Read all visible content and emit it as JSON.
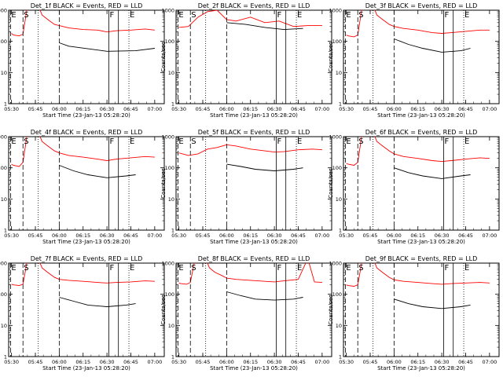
{
  "figure": {
    "x_tick_labels": [
      "05:30",
      "05:45",
      "06:00",
      "06:15",
      "06:30",
      "06:45",
      "07:00"
    ],
    "y_tick_labels": [
      "1",
      "10",
      "100",
      "1000"
    ],
    "x_label": "Start Time (23-Jan-13 05:28:20)",
    "y_label": "Counts/sec",
    "markers": [
      "E",
      "S",
      "F",
      "E"
    ],
    "colors": {
      "events": "#000000",
      "lld": "#ff0000"
    }
  },
  "chart_data": [
    {
      "type": "line",
      "title": "Det_1f BLACK = Events, RED = LLD",
      "xlabel": "Start Time (23-Jan-13 05:28:20)",
      "ylabel": "Counts/sec",
      "x_range": [
        "05:28:20",
        "07:06"
      ],
      "ylim": [
        1,
        1000
      ],
      "yscale": "log",
      "series": [
        {
          "name": "Events",
          "color": "black",
          "t": [
            6.0,
            6.1,
            6.5,
            6.8,
            7.0
          ],
          "y": [
            90,
            70,
            48,
            50,
            60
          ]
        },
        {
          "name": "LLD",
          "color": "red",
          "t": [
            5.5,
            5.52,
            5.58,
            5.62,
            5.66,
            5.72,
            5.78,
            5.82,
            5.88,
            5.95,
            6.0,
            6.1,
            6.25,
            6.4,
            6.5,
            6.6,
            6.75,
            6.9,
            7.0
          ],
          "y": [
            180,
            160,
            150,
            170,
            1000,
            1200,
            1400,
            700,
            500,
            350,
            320,
            270,
            240,
            230,
            200,
            220,
            230,
            250,
            230
          ]
        }
      ],
      "markers": [
        {
          "label": "E",
          "t": 5.49,
          "style": "dashed"
        },
        {
          "label": "S",
          "t": 5.62,
          "style": "dashed"
        },
        {
          "label": "",
          "t": 5.78,
          "style": "dotted"
        },
        {
          "label": "",
          "t": 6.0,
          "style": "dashed"
        },
        {
          "label": "F",
          "t": 6.52,
          "style": "solid"
        },
        {
          "label": "",
          "t": 6.62,
          "style": "solid"
        },
        {
          "label": "E",
          "t": 6.73,
          "style": "dotted"
        }
      ]
    },
    {
      "type": "line",
      "title": "Det_2f BLACK = Events, RED = LLD",
      "xlabel": "Start Time (23-Jan-13 05:28:20)",
      "ylabel": "Counts/sec",
      "x_range": [
        "05:28:20",
        "07:06"
      ],
      "ylim": [
        1,
        1000
      ],
      "yscale": "log",
      "series": [
        {
          "name": "Events",
          "color": "black",
          "t": [
            6.0,
            6.2,
            6.4,
            6.6,
            6.8
          ],
          "y": [
            400,
            350,
            280,
            240,
            260
          ]
        },
        {
          "name": "LLD",
          "color": "red",
          "t": [
            5.5,
            5.6,
            5.7,
            5.8,
            5.9,
            6.0,
            6.1,
            6.25,
            6.4,
            6.55,
            6.7,
            6.85,
            7.0
          ],
          "y": [
            280,
            300,
            600,
            900,
            1000,
            500,
            450,
            600,
            400,
            450,
            300,
            320,
            320
          ]
        }
      ],
      "markers": [
        {
          "label": "E",
          "t": 5.49,
          "style": "dashed"
        },
        {
          "label": "S",
          "t": 5.62,
          "style": "dashed"
        },
        {
          "label": "",
          "t": 5.78,
          "style": "dotted"
        },
        {
          "label": "",
          "t": 6.0,
          "style": "dashed"
        },
        {
          "label": "F",
          "t": 6.52,
          "style": "solid"
        },
        {
          "label": "",
          "t": 6.62,
          "style": "solid"
        },
        {
          "label": "E",
          "t": 6.73,
          "style": "dotted"
        }
      ]
    },
    {
      "type": "line",
      "title": "Det_3f BLACK = Events, RED = LLD",
      "xlabel": "Start Time (23-Jan-13 05:28:20)",
      "ylabel": "Counts/sec",
      "x_range": [
        "05:28:20",
        "07:06"
      ],
      "ylim": [
        1,
        1000
      ],
      "yscale": "log",
      "series": [
        {
          "name": "Events",
          "color": "black",
          "t": [
            6.0,
            6.15,
            6.3,
            6.5,
            6.7,
            6.8
          ],
          "y": [
            120,
            80,
            60,
            45,
            50,
            60
          ]
        },
        {
          "name": "LLD",
          "color": "red",
          "t": [
            5.5,
            5.52,
            5.58,
            5.62,
            5.66,
            5.72,
            5.78,
            5.82,
            5.88,
            5.95,
            6.0,
            6.1,
            6.25,
            6.4,
            6.5,
            6.6,
            6.75,
            6.9,
            7.0
          ],
          "y": [
            160,
            150,
            140,
            160,
            1000,
            1200,
            1400,
            700,
            500,
            350,
            300,
            260,
            230,
            190,
            180,
            190,
            210,
            230,
            230
          ]
        }
      ],
      "markers": [
        {
          "label": "E",
          "t": 5.49,
          "style": "dashed"
        },
        {
          "label": "S",
          "t": 5.62,
          "style": "dashed"
        },
        {
          "label": "",
          "t": 5.78,
          "style": "dotted"
        },
        {
          "label": "",
          "t": 6.0,
          "style": "dashed"
        },
        {
          "label": "F",
          "t": 6.52,
          "style": "solid"
        },
        {
          "label": "",
          "t": 6.62,
          "style": "solid"
        },
        {
          "label": "E",
          "t": 6.73,
          "style": "dotted"
        }
      ]
    },
    {
      "type": "line",
      "title": "Det_4f BLACK = Events, RED = LLD",
      "xlabel": "Start Time (23-Jan-13 05:28:20)",
      "ylabel": "Counts/sec",
      "x_range": [
        "05:28:20",
        "07:06"
      ],
      "ylim": [
        1,
        1000
      ],
      "yscale": "log",
      "series": [
        {
          "name": "Events",
          "color": "black",
          "t": [
            6.0,
            6.15,
            6.3,
            6.5,
            6.7,
            6.8
          ],
          "y": [
            120,
            80,
            60,
            48,
            55,
            60
          ]
        },
        {
          "name": "LLD",
          "color": "red",
          "t": [
            5.5,
            5.52,
            5.58,
            5.62,
            5.66,
            5.72,
            5.78,
            5.82,
            5.88,
            5.95,
            6.0,
            6.1,
            6.25,
            6.4,
            6.5,
            6.6,
            6.75,
            6.9,
            7.0
          ],
          "y": [
            130,
            120,
            110,
            150,
            1000,
            1200,
            1400,
            700,
            500,
            350,
            300,
            250,
            220,
            190,
            170,
            190,
            210,
            230,
            220
          ]
        }
      ],
      "markers": [
        {
          "label": "E",
          "t": 5.49,
          "style": "dashed"
        },
        {
          "label": "S",
          "t": 5.62,
          "style": "dashed"
        },
        {
          "label": "",
          "t": 5.78,
          "style": "dotted"
        },
        {
          "label": "",
          "t": 6.0,
          "style": "dashed"
        },
        {
          "label": "F",
          "t": 6.52,
          "style": "solid"
        },
        {
          "label": "",
          "t": 6.62,
          "style": "solid"
        },
        {
          "label": "E",
          "t": 6.73,
          "style": "dotted"
        }
      ]
    },
    {
      "type": "line",
      "title": "Det_5f BLACK = Events, RED = LLD",
      "xlabel": "Start Time (23-Jan-13 05:28:20)",
      "ylabel": "Counts/sec",
      "x_range": [
        "05:28:20",
        "07:06"
      ],
      "ylim": [
        1,
        1000
      ],
      "yscale": "log",
      "series": [
        {
          "name": "Events",
          "color": "black",
          "t": [
            6.0,
            6.15,
            6.3,
            6.5,
            6.7,
            6.8
          ],
          "y": [
            130,
            110,
            90,
            80,
            90,
            100
          ]
        },
        {
          "name": "LLD",
          "color": "red",
          "t": [
            5.5,
            5.6,
            5.7,
            5.8,
            5.9,
            6.0,
            6.1,
            6.25,
            6.4,
            6.5,
            6.6,
            6.75,
            6.9,
            7.0
          ],
          "y": [
            300,
            250,
            280,
            400,
            450,
            550,
            500,
            400,
            350,
            320,
            330,
            380,
            400,
            380
          ]
        }
      ],
      "markers": [
        {
          "label": "E",
          "t": 5.49,
          "style": "dashed"
        },
        {
          "label": "S",
          "t": 5.62,
          "style": "dashed"
        },
        {
          "label": "",
          "t": 5.78,
          "style": "dotted"
        },
        {
          "label": "",
          "t": 6.0,
          "style": "dashed"
        },
        {
          "label": "F",
          "t": 6.52,
          "style": "solid"
        },
        {
          "label": "",
          "t": 6.62,
          "style": "solid"
        },
        {
          "label": "E",
          "t": 6.73,
          "style": "dotted"
        }
      ]
    },
    {
      "type": "line",
      "title": "Det_6f BLACK = Events, RED = LLD",
      "xlabel": "Start Time (23-Jan-13 05:28:20)",
      "ylabel": "Counts/sec",
      "x_range": [
        "05:28:20",
        "07:06"
      ],
      "ylim": [
        1,
        1000
      ],
      "yscale": "log",
      "series": [
        {
          "name": "Events",
          "color": "black",
          "t": [
            6.0,
            6.15,
            6.3,
            6.5,
            6.7,
            6.8
          ],
          "y": [
            100,
            70,
            55,
            45,
            55,
            60
          ]
        },
        {
          "name": "LLD",
          "color": "red",
          "t": [
            5.5,
            5.52,
            5.58,
            5.62,
            5.66,
            5.72,
            5.78,
            5.82,
            5.88,
            5.95,
            6.0,
            6.1,
            6.25,
            6.4,
            6.5,
            6.6,
            6.75,
            6.9,
            7.0
          ],
          "y": [
            140,
            130,
            120,
            150,
            1000,
            1200,
            1400,
            700,
            500,
            350,
            280,
            230,
            200,
            170,
            160,
            170,
            190,
            210,
            200
          ]
        }
      ],
      "markers": [
        {
          "label": "E",
          "t": 5.49,
          "style": "dashed"
        },
        {
          "label": "S",
          "t": 5.62,
          "style": "dashed"
        },
        {
          "label": "",
          "t": 5.78,
          "style": "dotted"
        },
        {
          "label": "",
          "t": 6.0,
          "style": "dashed"
        },
        {
          "label": "F",
          "t": 6.52,
          "style": "solid"
        },
        {
          "label": "",
          "t": 6.62,
          "style": "solid"
        },
        {
          "label": "E",
          "t": 6.73,
          "style": "dotted"
        }
      ]
    },
    {
      "type": "line",
      "title": "Det_7f BLACK = Events, RED = LLD",
      "xlabel": "Start Time (23-Jan-13 05:28:20)",
      "ylabel": "Counts/sec",
      "x_range": [
        "05:28:20",
        "07:06"
      ],
      "ylim": [
        1,
        1000
      ],
      "yscale": "log",
      "series": [
        {
          "name": "Events",
          "color": "black",
          "t": [
            6.0,
            6.15,
            6.3,
            6.5,
            6.7,
            6.8
          ],
          "y": [
            80,
            60,
            45,
            40,
            45,
            50
          ]
        },
        {
          "name": "LLD",
          "color": "red",
          "t": [
            5.5,
            5.52,
            5.58,
            5.62,
            5.66,
            5.72,
            5.78,
            5.82,
            5.88,
            5.95,
            6.0,
            6.1,
            6.25,
            6.4,
            6.5,
            6.6,
            6.75,
            6.9,
            7.0
          ],
          "y": [
            210,
            200,
            190,
            210,
            1000,
            1200,
            1400,
            700,
            500,
            350,
            300,
            280,
            260,
            240,
            230,
            240,
            250,
            270,
            260
          ]
        }
      ],
      "markers": [
        {
          "label": "E",
          "t": 5.49,
          "style": "dashed"
        },
        {
          "label": "S",
          "t": 5.62,
          "style": "dashed"
        },
        {
          "label": "",
          "t": 5.78,
          "style": "dotted"
        },
        {
          "label": "",
          "t": 6.0,
          "style": "dashed"
        },
        {
          "label": "F",
          "t": 6.52,
          "style": "solid"
        },
        {
          "label": "",
          "t": 6.62,
          "style": "solid"
        },
        {
          "label": "E",
          "t": 6.73,
          "style": "dotted"
        }
      ]
    },
    {
      "type": "line",
      "title": "Det_8f BLACK = Events, RED = LLD",
      "xlabel": "Start Time (23-Jan-13 05:28:20)",
      "ylabel": "Counts/sec",
      "x_range": [
        "05:28:20",
        "07:06"
      ],
      "ylim": [
        1,
        1000
      ],
      "yscale": "log",
      "series": [
        {
          "name": "Events",
          "color": "black",
          "t": [
            6.0,
            6.15,
            6.3,
            6.5,
            6.7,
            6.8
          ],
          "y": [
            120,
            90,
            70,
            65,
            70,
            80
          ]
        },
        {
          "name": "LLD",
          "color": "red",
          "t": [
            5.5,
            5.52,
            5.58,
            5.62,
            5.66,
            5.72,
            5.78,
            5.82,
            5.88,
            5.95,
            6.0,
            6.1,
            6.25,
            6.4,
            6.5,
            6.6,
            6.75,
            6.85,
            6.92,
            7.0
          ],
          "y": [
            230,
            220,
            210,
            240,
            1000,
            1200,
            1400,
            700,
            500,
            400,
            330,
            300,
            280,
            260,
            250,
            270,
            300,
            1400,
            250,
            240
          ]
        }
      ],
      "markers": [
        {
          "label": "E",
          "t": 5.49,
          "style": "dashed"
        },
        {
          "label": "S",
          "t": 5.62,
          "style": "dashed"
        },
        {
          "label": "",
          "t": 5.78,
          "style": "dotted"
        },
        {
          "label": "",
          "t": 6.0,
          "style": "dashed"
        },
        {
          "label": "F",
          "t": 6.52,
          "style": "solid"
        },
        {
          "label": "",
          "t": 6.62,
          "style": "solid"
        },
        {
          "label": "E",
          "t": 6.73,
          "style": "dotted"
        }
      ]
    },
    {
      "type": "line",
      "title": "Det_9f BLACK = Events, RED = LLD",
      "xlabel": "Start Time (23-Jan-13 05:28:20)",
      "ylabel": "Counts/sec",
      "x_range": [
        "05:28:20",
        "07:06"
      ],
      "ylim": [
        1,
        1000
      ],
      "yscale": "log",
      "series": [
        {
          "name": "Events",
          "color": "black",
          "t": [
            6.0,
            6.15,
            6.3,
            6.5,
            6.7,
            6.8
          ],
          "y": [
            70,
            50,
            40,
            35,
            40,
            45
          ]
        },
        {
          "name": "LLD",
          "color": "red",
          "t": [
            5.5,
            5.52,
            5.58,
            5.62,
            5.66,
            5.72,
            5.78,
            5.82,
            5.88,
            5.95,
            6.0,
            6.1,
            6.25,
            6.4,
            6.5,
            6.6,
            6.75,
            6.9,
            7.0
          ],
          "y": [
            200,
            190,
            180,
            200,
            1000,
            1200,
            1400,
            700,
            500,
            350,
            290,
            260,
            240,
            220,
            210,
            220,
            230,
            240,
            230
          ]
        }
      ],
      "markers": [
        {
          "label": "E",
          "t": 5.49,
          "style": "dashed"
        },
        {
          "label": "S",
          "t": 5.62,
          "style": "dashed"
        },
        {
          "label": "",
          "t": 5.78,
          "style": "dotted"
        },
        {
          "label": "",
          "t": 6.0,
          "style": "dashed"
        },
        {
          "label": "F",
          "t": 6.52,
          "style": "solid"
        },
        {
          "label": "",
          "t": 6.62,
          "style": "solid"
        },
        {
          "label": "E",
          "t": 6.73,
          "style": "dotted"
        }
      ]
    }
  ]
}
